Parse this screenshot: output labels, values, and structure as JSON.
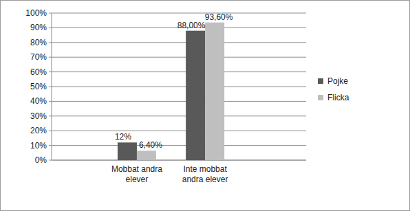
{
  "chart_data": {
    "type": "bar",
    "categories": [
      "Mobbat andra elever",
      "Inte mobbat andra elever"
    ],
    "series": [
      {
        "name": "Pojke",
        "color": "#595959",
        "values": [
          12,
          88
        ],
        "value_labels": [
          "12%",
          "88,00%"
        ]
      },
      {
        "name": "Flicka",
        "color": "#bfbfbf",
        "values": [
          6.4,
          93.6
        ],
        "value_labels": [
          "6,40%",
          "93,60%"
        ]
      }
    ],
    "ylim": [
      0,
      100
    ],
    "yticks": [
      {
        "value": 0,
        "label": "0%"
      },
      {
        "value": 10,
        "label": "10%"
      },
      {
        "value": 20,
        "label": "20%"
      },
      {
        "value": 30,
        "label": "30%"
      },
      {
        "value": 40,
        "label": "40%"
      },
      {
        "value": 50,
        "label": "50%"
      },
      {
        "value": 60,
        "label": "60%"
      },
      {
        "value": 70,
        "label": "70%"
      },
      {
        "value": 80,
        "label": "80%"
      },
      {
        "value": 90,
        "label": "90%"
      },
      {
        "value": 100,
        "label": "100%"
      }
    ],
    "grid": true,
    "legend": "right",
    "data_labels": true
  }
}
